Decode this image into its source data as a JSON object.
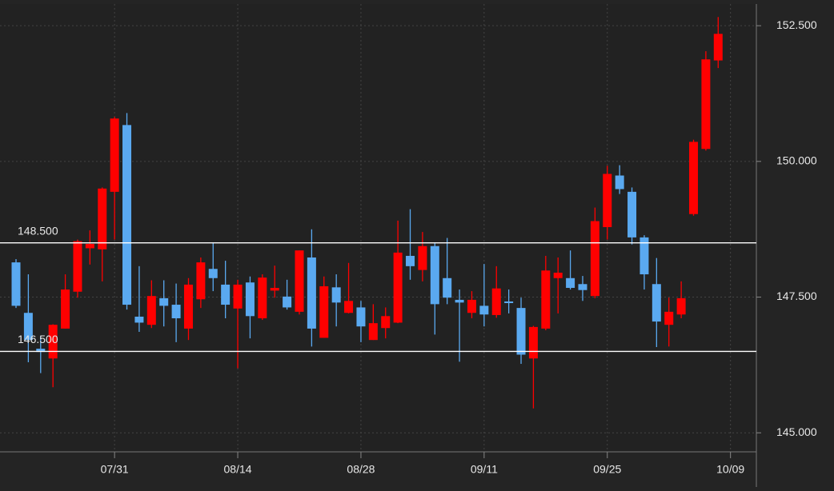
{
  "chart_data": {
    "type": "candlestick",
    "xlim": [
      -1.3,
      60.1
    ],
    "xticks": [
      {
        "value": 8,
        "label": "07/31"
      },
      {
        "value": 18,
        "label": "08/14"
      },
      {
        "value": 28,
        "label": "08/28"
      },
      {
        "value": 38,
        "label": "09/11"
      },
      {
        "value": 48,
        "label": "09/25"
      },
      {
        "value": 58,
        "label": "10/09"
      }
    ],
    "ylim": [
      144.65,
      152.9
    ],
    "yticks": [
      {
        "value": 145,
        "label": "145.000"
      },
      {
        "value": 147.5,
        "label": "147.500"
      },
      {
        "value": 150,
        "label": "150.000"
      },
      {
        "value": 152.5,
        "label": "152.500"
      }
    ],
    "grid": true,
    "up_color": "#ff0000",
    "down_color": "#5aa9f0",
    "hlines": [
      {
        "value": 148.5,
        "label": "148.500"
      },
      {
        "value": 146.5,
        "label": "146.500"
      }
    ],
    "series": {
      "open": [
        148.14,
        147.21,
        146.55,
        146.37,
        146.92,
        147.6,
        148.4,
        148.38,
        149.44,
        150.67,
        147.14,
        146.99,
        147.48,
        147.36,
        146.92,
        147.46,
        148.02,
        147.73,
        147.29,
        147.77,
        147.11,
        147.62,
        147.51,
        147.23,
        148.23,
        146.75,
        147.68,
        147.21,
        147.31,
        146.71,
        146.93,
        147.03,
        148.26,
        148.0,
        148.44,
        147.85,
        147.45,
        147.21,
        147.34,
        147.17,
        147.42,
        147.3,
        146.37,
        146.92,
        147.85,
        147.85,
        147.74,
        147.52,
        148.79,
        149.74,
        149.44,
        148.6,
        147.74,
        146.99,
        147.18,
        149.03,
        150.23,
        151.86
      ],
      "high": [
        148.2,
        147.92,
        146.78,
        147.0,
        147.92,
        148.56,
        148.73,
        149.52,
        150.82,
        150.89,
        148.07,
        147.81,
        147.81,
        147.75,
        147.85,
        148.23,
        148.51,
        148.17,
        147.82,
        147.88,
        147.92,
        148.08,
        147.82,
        148.36,
        148.75,
        147.88,
        147.92,
        148.13,
        147.43,
        147.37,
        147.31,
        148.91,
        149.12,
        148.7,
        148.51,
        148.59,
        147.64,
        147.61,
        148.11,
        148.07,
        147.64,
        147.49,
        146.97,
        148.26,
        148.23,
        148.36,
        147.89,
        149.15,
        149.92,
        149.93,
        149.52,
        148.64,
        148.22,
        147.49,
        147.79,
        150.4,
        152.03,
        152.66
      ],
      "low": [
        147.3,
        146.3,
        146.1,
        145.84,
        146.92,
        147.49,
        148.1,
        147.79,
        148.56,
        147.27,
        146.86,
        146.93,
        146.96,
        146.67,
        146.71,
        147.3,
        147.61,
        147.11,
        146.19,
        146.74,
        147.08,
        147.49,
        147.27,
        147.18,
        146.59,
        146.75,
        146.96,
        147.2,
        146.67,
        146.71,
        146.74,
        147.02,
        147.82,
        147.79,
        146.81,
        147.37,
        146.31,
        147.11,
        146.96,
        147.12,
        147.2,
        146.27,
        145.45,
        146.89,
        147.2,
        147.64,
        147.43,
        147.48,
        148.56,
        149.4,
        148.47,
        147.64,
        146.58,
        146.59,
        147.11,
        149.0,
        150.2,
        151.72
      ],
      "close": [
        147.34,
        146.71,
        146.49,
        146.99,
        147.64,
        148.53,
        148.48,
        149.5,
        150.79,
        147.36,
        147.03,
        147.52,
        147.34,
        147.11,
        147.73,
        148.14,
        147.85,
        147.36,
        147.73,
        147.15,
        147.86,
        147.67,
        147.31,
        148.36,
        146.92,
        147.7,
        147.4,
        147.43,
        146.96,
        147.02,
        147.15,
        148.32,
        148.07,
        148.44,
        147.37,
        147.49,
        147.4,
        147.45,
        147.18,
        147.66,
        147.39,
        146.44,
        146.95,
        147.99,
        147.95,
        147.67,
        147.63,
        148.9,
        149.77,
        149.49,
        148.6,
        147.92,
        147.05,
        147.23,
        147.48,
        150.36,
        151.88,
        152.35
      ]
    }
  }
}
